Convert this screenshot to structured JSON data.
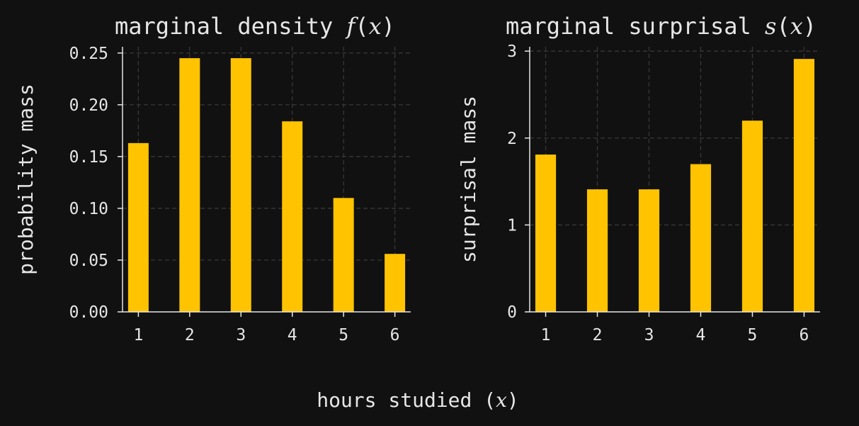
{
  "chart_data": [
    {
      "type": "bar",
      "title_prefix": "marginal density ",
      "title_func": "f",
      "title_var": "x",
      "ylabel": "probability mass",
      "categories": [
        "1",
        "2",
        "3",
        "4",
        "5",
        "6"
      ],
      "values": [
        0.163,
        0.245,
        0.245,
        0.184,
        0.11,
        0.056
      ],
      "ylim": [
        0,
        0.256
      ],
      "yticks": [
        0.0,
        0.05,
        0.1,
        0.15,
        0.2,
        0.25
      ],
      "ytick_labels": [
        "0.00",
        "0.05",
        "0.10",
        "0.15",
        "0.20",
        "0.25"
      ],
      "grid": true,
      "bar_color": "#FFC300"
    },
    {
      "type": "bar",
      "title_prefix": "marginal surprisal ",
      "title_func": "s",
      "title_var": "x",
      "ylabel": "surprisal mass",
      "categories": [
        "1",
        "2",
        "3",
        "4",
        "5",
        "6"
      ],
      "values": [
        1.81,
        1.41,
        1.41,
        1.7,
        2.2,
        2.91
      ],
      "ylim": [
        0,
        3.05
      ],
      "yticks": [
        0,
        1,
        2,
        3
      ],
      "ytick_labels": [
        "0",
        "1",
        "2",
        "3"
      ],
      "grid": true,
      "bar_color": "#FFC300"
    }
  ],
  "shared_xlabel_text": "hours studied (",
  "shared_xlabel_var": "x",
  "shared_xlabel_close": ")",
  "colors": {
    "background": "#111111",
    "foreground": "#e6e6e6",
    "bar": "#FFC300",
    "grid": "#3a3a3a"
  }
}
